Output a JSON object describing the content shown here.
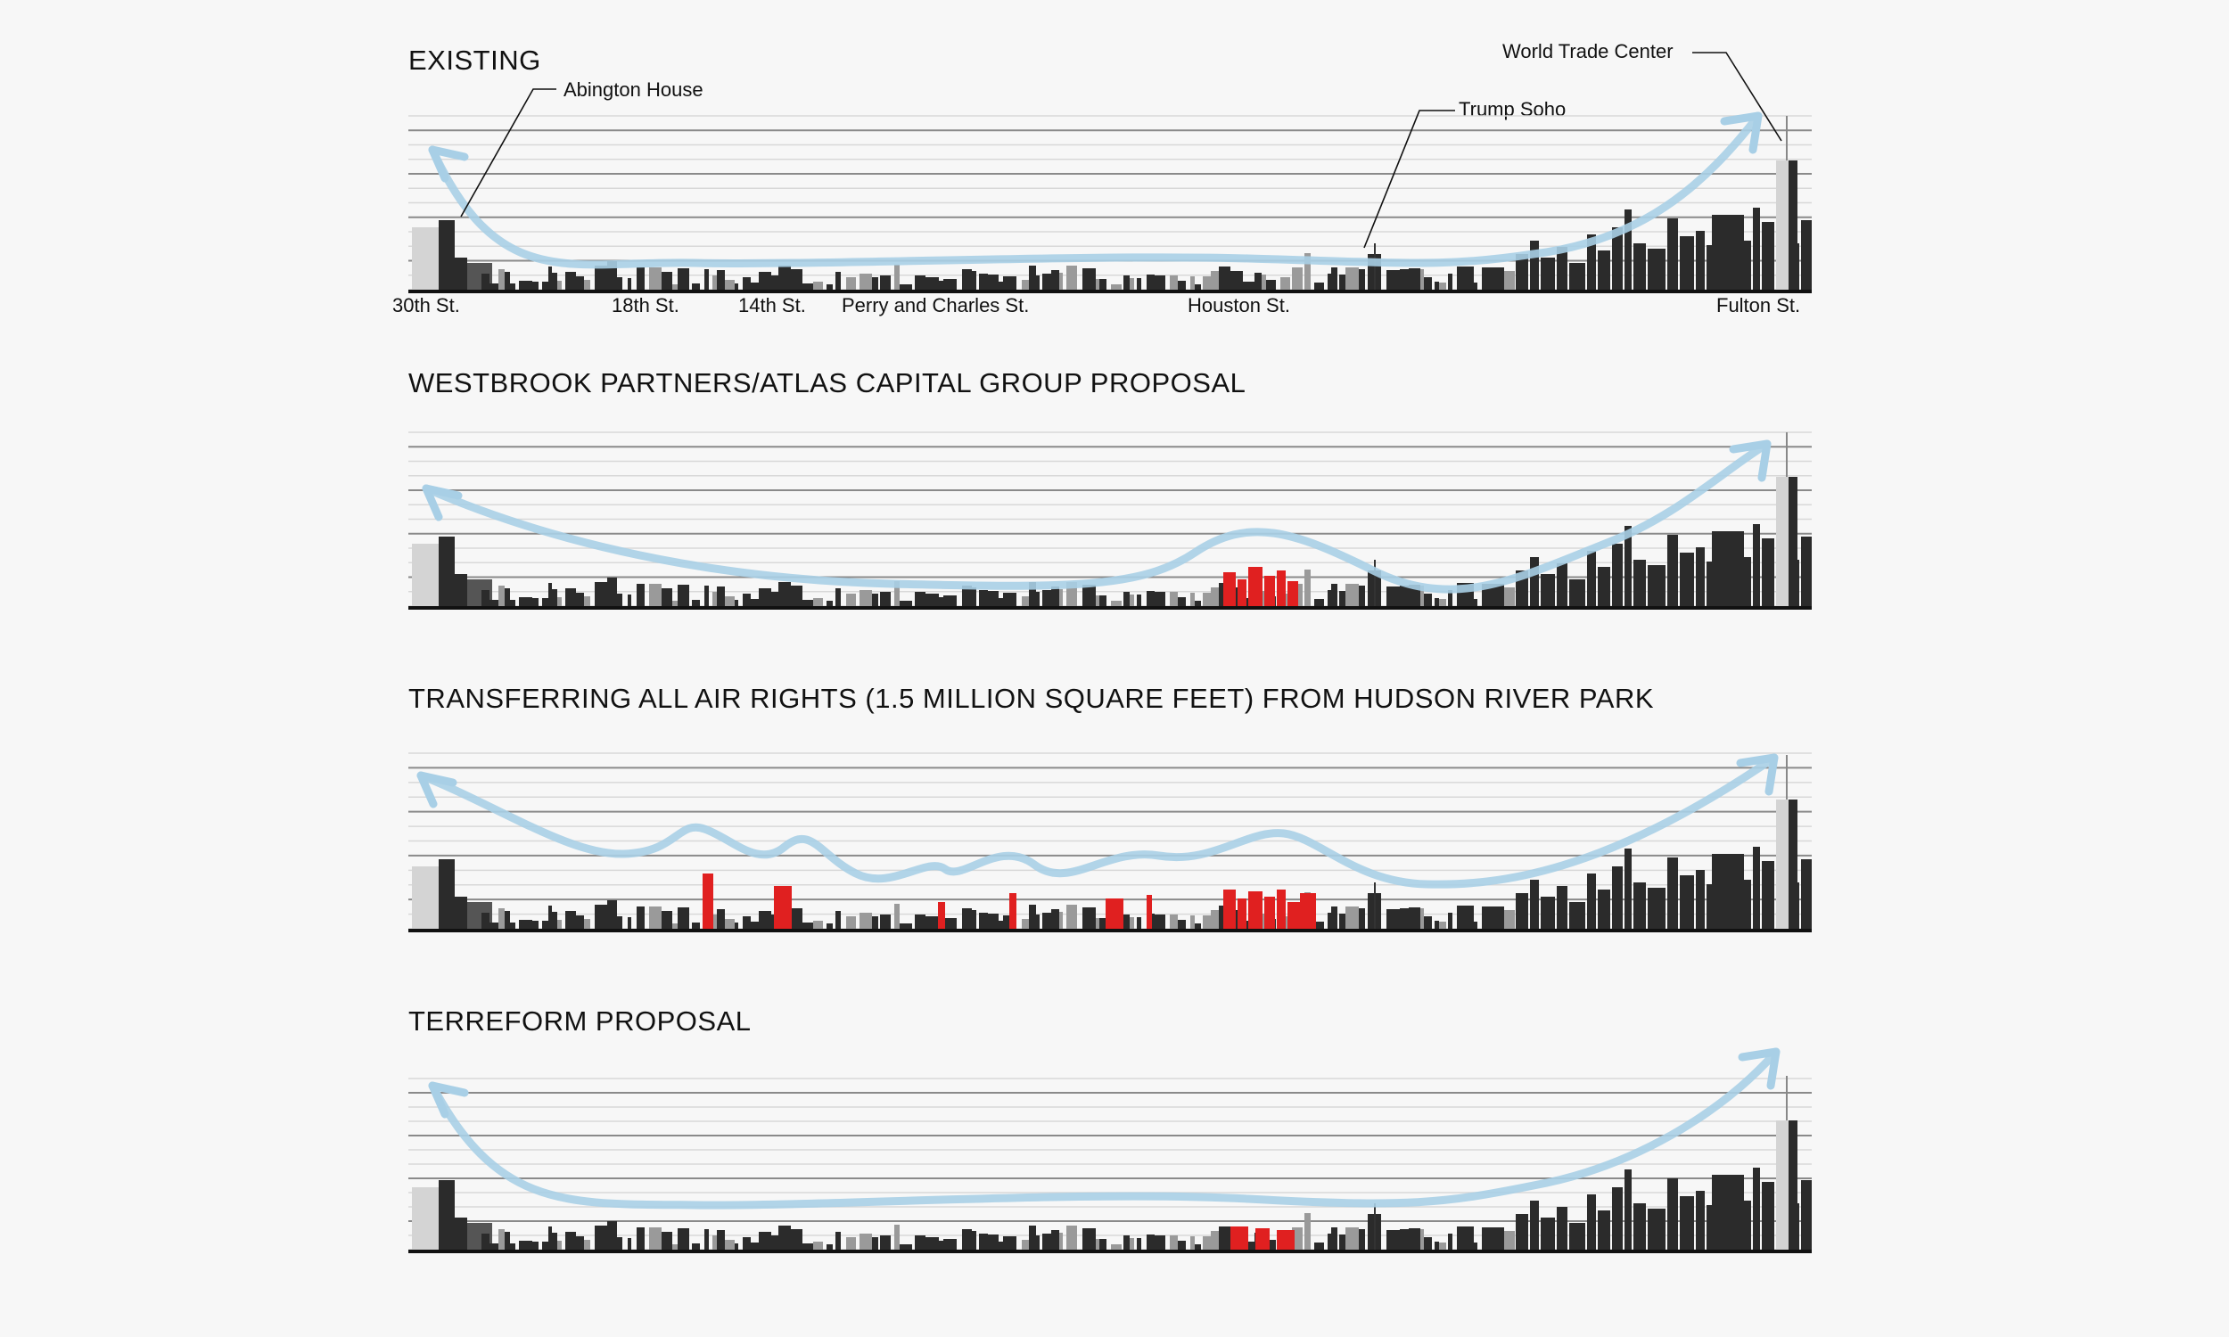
{
  "colors": {
    "background": "#f7f7f7",
    "building": "#2b2b2b",
    "building_light": "#d4d4d4",
    "proposal": "#e02020",
    "airflow_arrow": "#a8cfe6",
    "guide_line_major": "#8a8a8a",
    "guide_line_minor": "#d8d8d8"
  },
  "panels": [
    {
      "id": "existing",
      "title": "EXISTING"
    },
    {
      "id": "westbrook",
      "title": "WESTBROOK PARTNERS/ATLAS CAPITAL GROUP PROPOSAL"
    },
    {
      "id": "transfer",
      "title": "TRANSFERRING ALL AIR RIGHTS (1.5 MILLION SQUARE FEET) FROM HUDSON RIVER PARK"
    },
    {
      "id": "terreform",
      "title": "TERREFORM PROPOSAL"
    }
  ],
  "street_labels": [
    "30th St.",
    "18th St.",
    "14th St.",
    "Perry and Charles St.",
    "Houston St.",
    "Fulton St."
  ],
  "annotations": {
    "abington": "Abington House",
    "trump": "Trump Soho",
    "wtc": "World Trade Center"
  },
  "icons": {
    "airflow": "curved-arrow-icon"
  }
}
